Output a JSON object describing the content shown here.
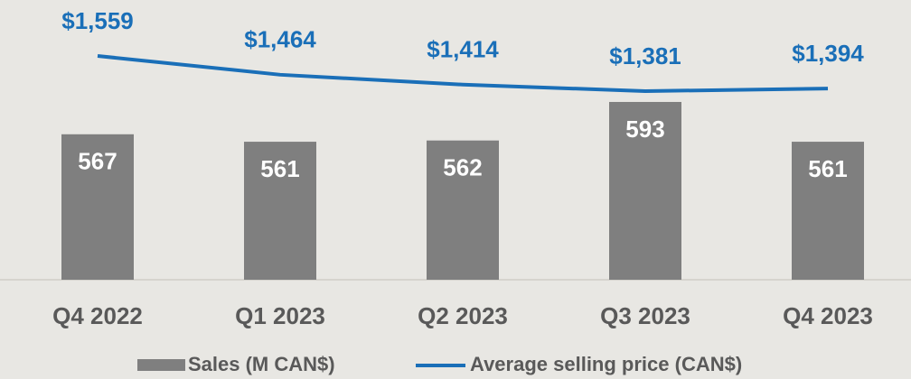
{
  "chart_data": {
    "type": "bar-line",
    "categories": [
      "Q4 2022",
      "Q1 2023",
      "Q2 2023",
      "Q3 2023",
      "Q4 2023"
    ],
    "series": [
      {
        "name": "Sales (M CAN$)",
        "type": "bar",
        "color": "#7f7f7f",
        "values": [
          567,
          561,
          562,
          593,
          561
        ]
      },
      {
        "name": "Average selling price (CAN$)",
        "type": "line",
        "axis": "y2",
        "color": "#1a6fb8",
        "values": [
          1559,
          1464,
          1414,
          1381,
          1394
        ],
        "value_labels": [
          "$1,559",
          "$1,464",
          "$1,414",
          "$1,381",
          "$1,394"
        ]
      }
    ],
    "ylim": [
      450,
      675
    ],
    "y2lim": [
      427,
      1842
    ],
    "legend": "bottom"
  }
}
